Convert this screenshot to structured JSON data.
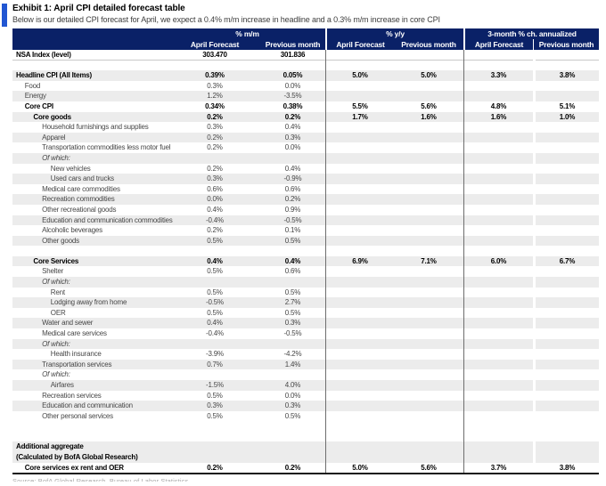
{
  "header": {
    "title": "Exhibit 1: April CPI detailed forecast table",
    "subtitle": "Below is our detailed CPI forecast for April, we expect a 0.4% m/m increase in headline and a 0.3% m/m increase in core CPI"
  },
  "colors": {
    "navy_header": "#0a2167",
    "accent_blue": "#2156d2",
    "stripe_gray": "#ececec"
  },
  "table": {
    "col_groups": [
      {
        "label": "% m/m"
      },
      {
        "label": "% y/y"
      },
      {
        "label": "3-month % ch. annualized"
      }
    ],
    "sub_headers": [
      "April Forecast",
      "Previous month",
      "April Forecast",
      "Previous month",
      "April Forecast",
      "Previous month"
    ],
    "rows": [
      {
        "label": "NSA Index (level)",
        "indent": 0,
        "bold": true,
        "rule": true,
        "values": [
          "303.470",
          "301.836",
          "",
          "",
          "",
          ""
        ]
      },
      {
        "label": "",
        "blank": true,
        "values": [
          "",
          "",
          "",
          "",
          "",
          ""
        ]
      },
      {
        "label": "Headline CPI (All Items)",
        "indent": 0,
        "bold": true,
        "stripe": true,
        "values": [
          "0.39%",
          "0.05%",
          "5.0%",
          "5.0%",
          "3.3%",
          "3.8%"
        ]
      },
      {
        "label": "Food",
        "indent": 1,
        "values": [
          "0.3%",
          "0.0%",
          "",
          "",
          "",
          ""
        ]
      },
      {
        "label": "Energy",
        "indent": 1,
        "stripe": true,
        "values": [
          "1.2%",
          "-3.5%",
          "",
          "",
          "",
          ""
        ]
      },
      {
        "label": "Core CPI",
        "indent": 1,
        "bold": true,
        "values": [
          "0.34%",
          "0.38%",
          "5.5%",
          "5.6%",
          "4.8%",
          "5.1%"
        ]
      },
      {
        "label": "Core goods",
        "indent": 2,
        "bold": true,
        "stripe": true,
        "values": [
          "0.2%",
          "0.2%",
          "1.7%",
          "1.6%",
          "1.6%",
          "1.0%"
        ]
      },
      {
        "label": "Household furnishings and supplies",
        "indent": 3,
        "values": [
          "0.3%",
          "0.4%",
          "",
          "",
          "",
          ""
        ]
      },
      {
        "label": "Apparel",
        "indent": 3,
        "stripe": true,
        "values": [
          "0.2%",
          "0.3%",
          "",
          "",
          "",
          ""
        ]
      },
      {
        "label": "Transportation commodities less motor fuel",
        "indent": 3,
        "values": [
          "0.2%",
          "0.0%",
          "",
          "",
          "",
          ""
        ]
      },
      {
        "label": "Of which:",
        "indent": 3,
        "italic": true,
        "stripe": true,
        "values": [
          "",
          "",
          "",
          "",
          "",
          ""
        ]
      },
      {
        "label": "New vehicles",
        "indent": 4,
        "values": [
          "0.2%",
          "0.4%",
          "",
          "",
          "",
          ""
        ]
      },
      {
        "label": "Used cars and trucks",
        "indent": 4,
        "stripe": true,
        "values": [
          "0.3%",
          "-0.9%",
          "",
          "",
          "",
          ""
        ]
      },
      {
        "label": "Medical care commodities",
        "indent": 3,
        "values": [
          "0.6%",
          "0.6%",
          "",
          "",
          "",
          ""
        ]
      },
      {
        "label": "Recreation commodities",
        "indent": 3,
        "stripe": true,
        "values": [
          "0.0%",
          "0.2%",
          "",
          "",
          "",
          ""
        ]
      },
      {
        "label": "Other recreational goods",
        "indent": 3,
        "values": [
          "0.4%",
          "0.9%",
          "",
          "",
          "",
          ""
        ]
      },
      {
        "label": "Education and communication commodities",
        "indent": 3,
        "stripe": true,
        "values": [
          "-0.4%",
          "-0.5%",
          "",
          "",
          "",
          ""
        ]
      },
      {
        "label": "Alcoholic beverages",
        "indent": 3,
        "values": [
          "0.2%",
          "0.1%",
          "",
          "",
          "",
          ""
        ]
      },
      {
        "label": "Other goods",
        "indent": 3,
        "stripe": true,
        "values": [
          "0.5%",
          "0.5%",
          "",
          "",
          "",
          ""
        ]
      },
      {
        "label": "",
        "blank": true,
        "values": [
          "",
          "",
          "",
          "",
          "",
          ""
        ]
      },
      {
        "label": "Core Services",
        "indent": 2,
        "bold": true,
        "stripe": true,
        "values": [
          "0.4%",
          "0.4%",
          "6.9%",
          "7.1%",
          "6.0%",
          "6.7%"
        ]
      },
      {
        "label": "Shelter",
        "indent": 3,
        "values": [
          "0.5%",
          "0.6%",
          "",
          "",
          "",
          ""
        ]
      },
      {
        "label": "Of which:",
        "indent": 3,
        "italic": true,
        "stripe": true,
        "values": [
          "",
          "",
          "",
          "",
          "",
          ""
        ]
      },
      {
        "label": "Rent",
        "indent": 4,
        "values": [
          "0.5%",
          "0.5%",
          "",
          "",
          "",
          ""
        ]
      },
      {
        "label": "Lodging away from home",
        "indent": 4,
        "stripe": true,
        "values": [
          "-0.5%",
          "2.7%",
          "",
          "",
          "",
          ""
        ]
      },
      {
        "label": "OER",
        "indent": 4,
        "values": [
          "0.5%",
          "0.5%",
          "",
          "",
          "",
          ""
        ]
      },
      {
        "label": "Water and sewer",
        "indent": 3,
        "stripe": true,
        "values": [
          "0.4%",
          "0.3%",
          "",
          "",
          "",
          ""
        ]
      },
      {
        "label": "Medical care services",
        "indent": 3,
        "values": [
          "-0.4%",
          "-0.5%",
          "",
          "",
          "",
          ""
        ]
      },
      {
        "label": "Of which:",
        "indent": 3,
        "italic": true,
        "stripe": true,
        "values": [
          "",
          "",
          "",
          "",
          "",
          ""
        ]
      },
      {
        "label": "Health insurance",
        "indent": 4,
        "values": [
          "-3.9%",
          "-4.2%",
          "",
          "",
          "",
          ""
        ]
      },
      {
        "label": "Transportation services",
        "indent": 3,
        "stripe": true,
        "values": [
          "0.7%",
          "1.4%",
          "",
          "",
          "",
          ""
        ]
      },
      {
        "label": "Of which:",
        "indent": 3,
        "italic": true,
        "values": [
          "",
          "",
          "",
          "",
          "",
          ""
        ]
      },
      {
        "label": "Airfares",
        "indent": 4,
        "stripe": true,
        "values": [
          "-1.5%",
          "4.0%",
          "",
          "",
          "",
          ""
        ]
      },
      {
        "label": "Recreation services",
        "indent": 3,
        "values": [
          "0.5%",
          "0.0%",
          "",
          "",
          "",
          ""
        ]
      },
      {
        "label": "Education and communication",
        "indent": 3,
        "stripe": true,
        "values": [
          "0.3%",
          "0.3%",
          "",
          "",
          "",
          ""
        ]
      },
      {
        "label": "Other personal services",
        "indent": 3,
        "values": [
          "0.5%",
          "0.5%",
          "",
          "",
          "",
          ""
        ]
      },
      {
        "label": "",
        "blank": true,
        "tall": true,
        "values": [
          "",
          "",
          "",
          "",
          "",
          ""
        ]
      },
      {
        "label": "Additional aggregate",
        "indent": 0,
        "bold": true,
        "stripe": true,
        "values": [
          "",
          "",
          "",
          "",
          "",
          ""
        ]
      },
      {
        "label": "(Calculated by BofA Global Research)",
        "indent": 0,
        "bold": true,
        "stripe": true,
        "values": [
          "",
          "",
          "",
          "",
          "",
          ""
        ]
      },
      {
        "label": "Core services ex rent and OER",
        "indent": 1,
        "bold": true,
        "values": [
          "0.2%",
          "0.2%",
          "5.0%",
          "5.6%",
          "3.7%",
          "3.8%"
        ]
      }
    ]
  },
  "footer": {
    "source": "Source: BofA Global Research, Bureau of Labor Statistics"
  }
}
